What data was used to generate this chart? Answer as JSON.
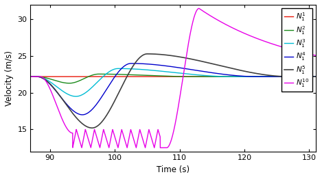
{
  "title": "",
  "xlabel": "Time (s)",
  "ylabel": "Velocity (m/s)",
  "xlim": [
    87,
    131
  ],
  "ylim": [
    12,
    32
  ],
  "yticks": [
    15,
    20,
    25,
    30
  ],
  "xticks": [
    90,
    100,
    110,
    120,
    130
  ],
  "base_velocity": 22.2,
  "colors": {
    "N1": "#e8170a",
    "N2": "#1a8a1a",
    "N3": "#00bcd4",
    "N4": "#0000cc",
    "N5": "#404040",
    "N10": "#e800e8"
  },
  "legend_labels": [
    "$N_1^1$",
    "$N_1^2$",
    "$N_1^3$",
    "$N_1^4$",
    "$N_1^5$",
    "$N_1^{10}$"
  ],
  "figsize": [
    4.69,
    2.62
  ],
  "dpi": 100
}
